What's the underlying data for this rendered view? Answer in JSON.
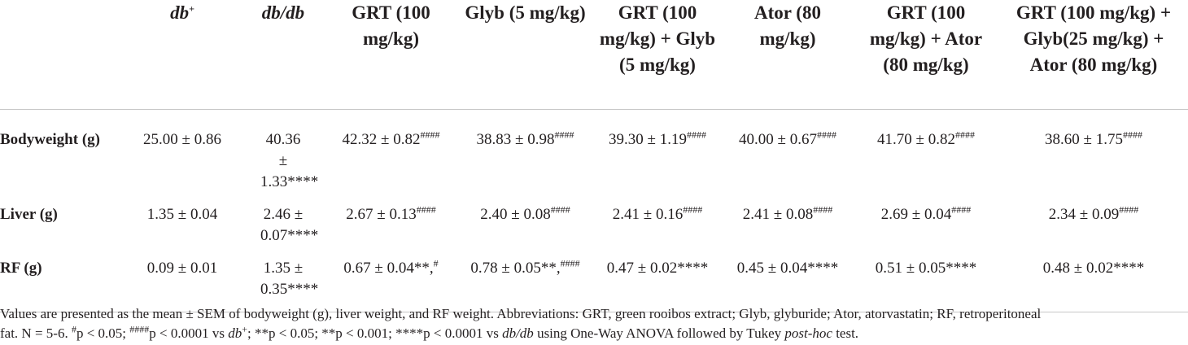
{
  "table": {
    "headers": [
      {
        "text": "",
        "sup": ""
      },
      {
        "text": "db",
        "sup": "+"
      },
      {
        "text": "db/db",
        "sup": ""
      },
      {
        "text": "GRT (100 mg/kg)",
        "sup": ""
      },
      {
        "text": "Glyb (5 mg/kg)",
        "sup": ""
      },
      {
        "text": "GRT (100 mg/kg) + Glyb (5 mg/kg)",
        "sup": ""
      },
      {
        "text": "Ator (80 mg/kg)",
        "sup": ""
      },
      {
        "text": "GRT (100 mg/kg) + Ator (80 mg/kg)",
        "sup": ""
      },
      {
        "text": "GRT (100 mg/kg) + Glyb(25 mg/kg) + Ator (80 mg/kg)",
        "sup": ""
      }
    ],
    "rows": [
      {
        "label": "Bodyweight (g)",
        "cells": [
          {
            "v": "25.00 ± 0.86",
            "s": ""
          },
          {
            "v": "40.36 ± 1.33",
            "s": "****"
          },
          {
            "v": "42.32 ± 0.82",
            "s": "####"
          },
          {
            "v": "38.83 ± 0.98",
            "s": "####"
          },
          {
            "v": "39.30 ± 1.19",
            "s": "####"
          },
          {
            "v": "40.00 ± 0.67",
            "s": "####"
          },
          {
            "v": "41.70 ± 0.82",
            "s": "####"
          },
          {
            "v": "38.60 ± 1.75",
            "s": "####"
          }
        ]
      },
      {
        "label": "Liver (g)",
        "cells": [
          {
            "v": "1.35 ± 0.04",
            "s": ""
          },
          {
            "v": "2.46 ± 0.07",
            "s": "****"
          },
          {
            "v": "2.67 ± 0.13",
            "s": "####"
          },
          {
            "v": "2.40 ± 0.08",
            "s": "####"
          },
          {
            "v": "2.41 ± 0.16",
            "s": "####"
          },
          {
            "v": "2.41 ± 0.08",
            "s": "####"
          },
          {
            "v": "2.69 ± 0.04",
            "s": "####"
          },
          {
            "v": "2.34 ± 0.09",
            "s": "####"
          }
        ]
      },
      {
        "label": "RF (g)",
        "cells": [
          {
            "v": "0.09 ± 0.01",
            "s": ""
          },
          {
            "v": "1.35 ± 0.35",
            "s": "****"
          },
          {
            "v": "0.67 ± 0.04**,",
            "s": "#"
          },
          {
            "v": "0.78 ± 0.05**,",
            "s": "####"
          },
          {
            "v": "0.47 ± 0.02****",
            "s": ""
          },
          {
            "v": "0.45 ± 0.04****",
            "s": ""
          },
          {
            "v": "0.51 ± 0.05****",
            "s": ""
          },
          {
            "v": "0.48 ± 0.02****",
            "s": ""
          }
        ]
      }
    ]
  },
  "footnote": {
    "l1": "Values are presented as the mean ± SEM of bodyweight (g), liver weight, and RF weight. Abbreviations: GRT, green rooibos extract; Glyb, glyburide; Ator, atorvastatin; RF, retroperitoneal",
    "l2a": "fat. N = 5-6. ",
    "hash1": "#",
    "l2b": "p < 0.05; ",
    "hash4": "####",
    "l2c": "p < 0.0001 vs ",
    "db": "db",
    "plus": "+",
    "l2d": "; **p < 0.05; **p < 0.001; ****p < 0.0001 vs ",
    "dbdb": "db/db",
    "l2e": " using One-Way ANOVA followed by Tukey ",
    "posthoc": "post-hoc",
    "l2f": " test."
  }
}
